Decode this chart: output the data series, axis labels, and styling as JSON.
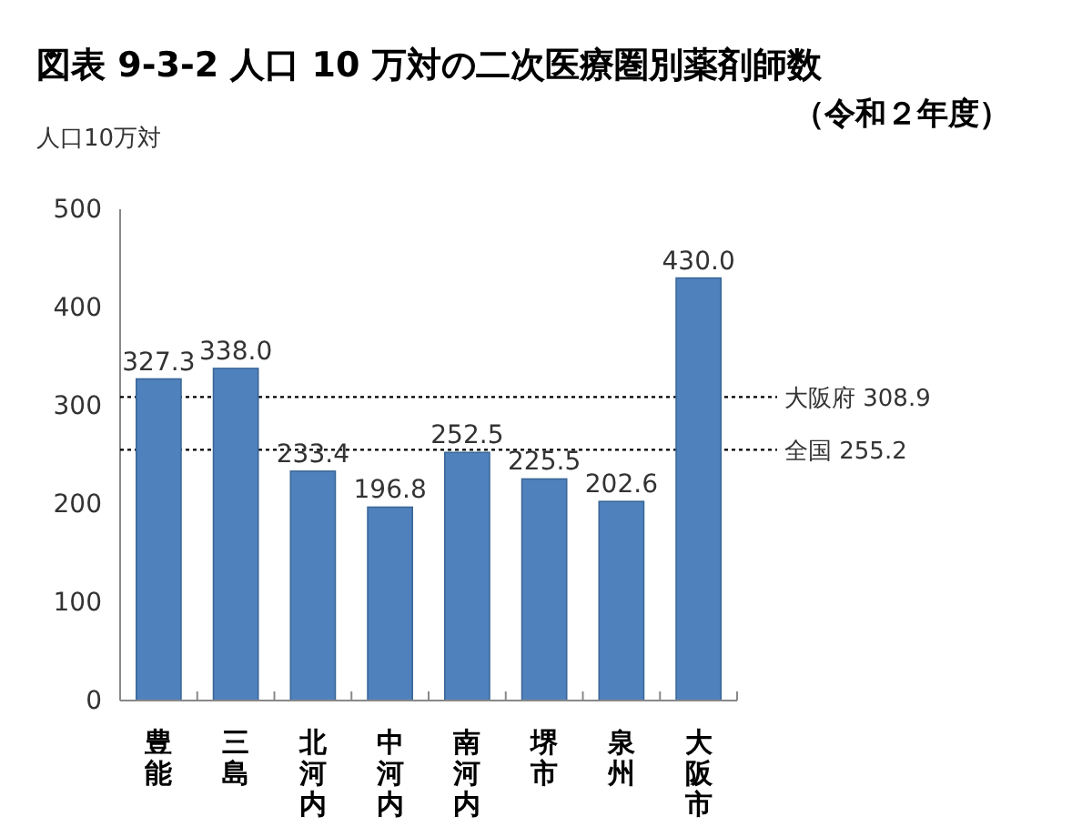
{
  "chart_data": {
    "type": "bar",
    "title": "図表 9-3-2  人口 10 万対の二次医療圏別薬剤師数",
    "subtitle": "（令和２年度）",
    "ylabel": "人口10万対",
    "categories": [
      "豊能",
      "三島",
      "北河内",
      "中河内",
      "南河内",
      "堺市",
      "泉州",
      "大阪市"
    ],
    "values": [
      327.3,
      338.0,
      233.4,
      196.8,
      252.5,
      225.5,
      202.6,
      430.0
    ],
    "value_labels": [
      "327.3",
      "338.0",
      "233.4",
      "196.8",
      "252.5",
      "225.5",
      "202.6",
      "430.0"
    ],
    "color": "#4f81bd",
    "ylim": [
      0,
      500
    ],
    "yticks": [
      0,
      100,
      200,
      300,
      400,
      500
    ],
    "ref_lines": [
      {
        "axis": "y",
        "value": 308.9,
        "label": "大阪府 308.9",
        "line_style": "dotted",
        "color": "#000000"
      },
      {
        "axis": "y",
        "value": 255.2,
        "label": "全国 255.2",
        "line_style": "dotted",
        "color": "#000000"
      }
    ]
  }
}
